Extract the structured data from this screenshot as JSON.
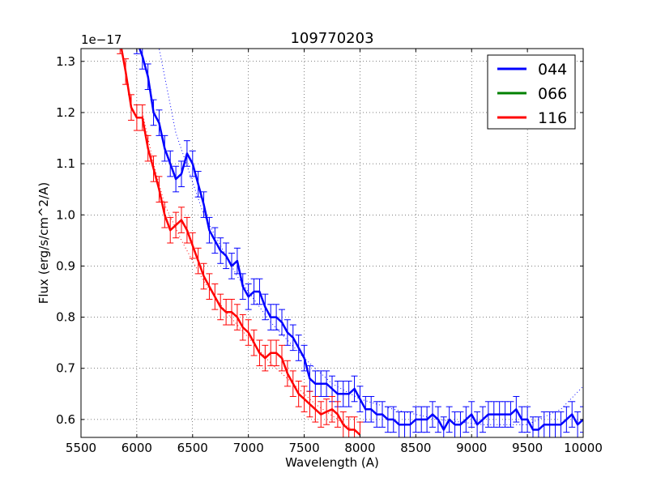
{
  "chart_data": {
    "type": "line",
    "title": "109770203",
    "xlabel": "Wavelength (A)",
    "ylabel": "Flux (erg/s/cm^2/A)",
    "offset_text": "1e−17",
    "xlim": [
      5500,
      10000
    ],
    "ylim": [
      0.565,
      1.325
    ],
    "xticks": [
      5500,
      6000,
      6500,
      7000,
      7500,
      8000,
      8500,
      9000,
      9500,
      10000
    ],
    "xtick_labels": [
      "5500",
      "6000",
      "6500",
      "7000",
      "7500",
      "8000",
      "8500",
      "9000",
      "9500",
      "10000"
    ],
    "yticks": [
      0.6,
      0.7,
      0.8,
      0.9,
      1.0,
      1.1,
      1.2,
      1.3
    ],
    "ytick_labels": [
      "0.6",
      "0.7",
      "0.8",
      "0.9",
      "1.0",
      "1.1",
      "1.2",
      "1.3"
    ],
    "grid": true,
    "legend_position": "top-right",
    "series": [
      {
        "name": "044",
        "color": "#0000ff",
        "x": [
          6000,
          6050,
          6100,
          6150,
          6200,
          6250,
          6300,
          6350,
          6400,
          6450,
          6500,
          6550,
          6600,
          6650,
          6700,
          6750,
          6800,
          6850,
          6900,
          6950,
          7000,
          7050,
          7100,
          7150,
          7200,
          7250,
          7300,
          7350,
          7400,
          7450,
          7500,
          7550,
          7600,
          7650,
          7700,
          7750,
          7800,
          7850,
          7900,
          7950,
          8000,
          8050,
          8100,
          8150,
          8200,
          8250,
          8300,
          8350,
          8400,
          8450,
          8500,
          8550,
          8600,
          8650,
          8700,
          8750,
          8800,
          8850,
          8900,
          8950,
          9000,
          9050,
          9100,
          9150,
          9200,
          9250,
          9300,
          9350,
          9400,
          9450,
          9500,
          9550,
          9600,
          9650,
          9700,
          9750,
          9800,
          9850,
          9900,
          9950,
          10000
        ],
        "values": [
          1.34,
          1.31,
          1.27,
          1.2,
          1.18,
          1.13,
          1.1,
          1.07,
          1.08,
          1.12,
          1.1,
          1.06,
          1.02,
          0.97,
          0.95,
          0.93,
          0.92,
          0.9,
          0.91,
          0.86,
          0.84,
          0.85,
          0.85,
          0.82,
          0.8,
          0.8,
          0.79,
          0.77,
          0.76,
          0.74,
          0.72,
          0.68,
          0.67,
          0.67,
          0.67,
          0.66,
          0.65,
          0.65,
          0.65,
          0.66,
          0.64,
          0.62,
          0.62,
          0.61,
          0.61,
          0.6,
          0.6,
          0.59,
          0.59,
          0.59,
          0.6,
          0.6,
          0.6,
          0.61,
          0.6,
          0.58,
          0.6,
          0.59,
          0.59,
          0.6,
          0.61,
          0.59,
          0.6,
          0.61,
          0.61,
          0.61,
          0.61,
          0.61,
          0.62,
          0.6,
          0.6,
          0.58,
          0.58,
          0.59,
          0.59,
          0.59,
          0.59,
          0.6,
          0.61,
          0.59,
          0.6
        ],
        "errors": [
          0.025,
          0.025,
          0.025,
          0.025,
          0.025,
          0.025,
          0.025,
          0.025,
          0.025,
          0.025,
          0.025,
          0.025,
          0.025,
          0.025,
          0.025,
          0.025,
          0.025,
          0.025,
          0.025,
          0.025,
          0.025,
          0.025,
          0.025,
          0.025,
          0.025,
          0.025,
          0.025,
          0.025,
          0.025,
          0.025,
          0.025,
          0.025,
          0.025,
          0.025,
          0.025,
          0.025,
          0.025,
          0.025,
          0.025,
          0.025,
          0.025,
          0.025,
          0.025,
          0.025,
          0.025,
          0.025,
          0.025,
          0.025,
          0.025,
          0.025,
          0.025,
          0.025,
          0.025,
          0.025,
          0.025,
          0.025,
          0.025,
          0.025,
          0.025,
          0.025,
          0.025,
          0.025,
          0.025,
          0.025,
          0.025,
          0.025,
          0.025,
          0.025,
          0.025,
          0.025,
          0.025,
          0.025,
          0.025,
          0.025,
          0.025,
          0.025,
          0.025,
          0.025,
          0.025,
          0.025,
          0.025
        ],
        "fit_x": [
          6150,
          6350,
          6600,
          6900,
          7200,
          7500,
          7750,
          8000,
          8300,
          8700,
          9100,
          9500,
          9800,
          10000
        ],
        "fit_values": [
          1.38,
          1.16,
          1.0,
          0.88,
          0.79,
          0.72,
          0.67,
          0.64,
          0.62,
          0.6,
          0.59,
          0.59,
          0.62,
          0.665
        ]
      },
      {
        "name": "066",
        "color": "#008000",
        "x": [],
        "values": [],
        "errors": []
      },
      {
        "name": "116",
        "color": "#ff0000",
        "x": [
          5850,
          5900,
          5950,
          6000,
          6050,
          6100,
          6150,
          6200,
          6250,
          6300,
          6350,
          6400,
          6450,
          6500,
          6550,
          6600,
          6650,
          6700,
          6750,
          6800,
          6850,
          6900,
          6950,
          7000,
          7050,
          7100,
          7150,
          7200,
          7250,
          7300,
          7350,
          7400,
          7450,
          7500,
          7550,
          7600,
          7650,
          7700,
          7750,
          7800,
          7850,
          7900,
          7950,
          8000
        ],
        "values": [
          1.34,
          1.28,
          1.21,
          1.19,
          1.19,
          1.13,
          1.09,
          1.05,
          1.0,
          0.97,
          0.98,
          0.99,
          0.97,
          0.94,
          0.91,
          0.88,
          0.86,
          0.84,
          0.82,
          0.81,
          0.81,
          0.8,
          0.78,
          0.77,
          0.75,
          0.73,
          0.72,
          0.73,
          0.73,
          0.72,
          0.69,
          0.67,
          0.65,
          0.64,
          0.63,
          0.62,
          0.61,
          0.615,
          0.62,
          0.61,
          0.59,
          0.58,
          0.58,
          0.57
        ],
        "errors": [
          0.025,
          0.025,
          0.025,
          0.025,
          0.025,
          0.025,
          0.025,
          0.025,
          0.025,
          0.025,
          0.025,
          0.025,
          0.025,
          0.025,
          0.025,
          0.025,
          0.025,
          0.025,
          0.025,
          0.025,
          0.025,
          0.025,
          0.025,
          0.025,
          0.025,
          0.025,
          0.025,
          0.025,
          0.025,
          0.025,
          0.025,
          0.025,
          0.025,
          0.025,
          0.025,
          0.025,
          0.025,
          0.025,
          0.025,
          0.025,
          0.025,
          0.025,
          0.025,
          0.025
        ],
        "fit_x": [
          6050,
          6150,
          6250,
          6400,
          6600,
          6800,
          7000,
          7200,
          7400,
          7600,
          7800,
          8000
        ],
        "fit_values": [
          1.2,
          1.1,
          1.02,
          0.95,
          0.87,
          0.81,
          0.76,
          0.71,
          0.67,
          0.63,
          0.6,
          0.57
        ]
      }
    ]
  }
}
